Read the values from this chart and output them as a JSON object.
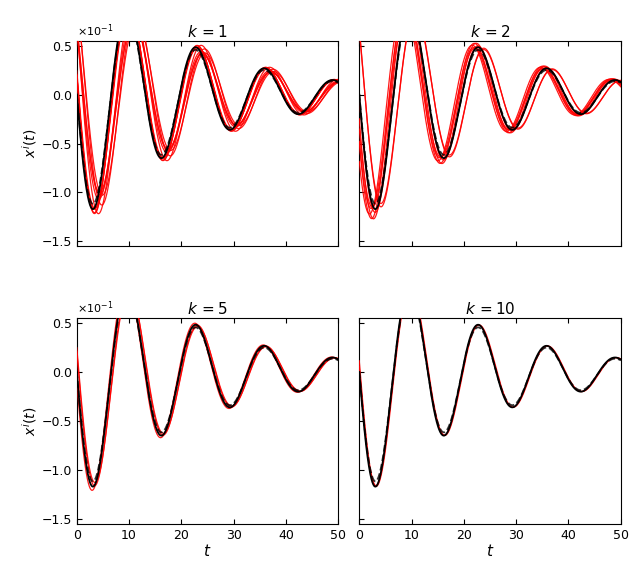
{
  "subplot_titles": [
    "k =1",
    "k =2",
    "k =5",
    "k =10"
  ],
  "t_start": 0,
  "t_end": 50,
  "n_points": 1000,
  "ylim": [
    -1.55,
    0.55
  ],
  "xlim": [
    0,
    50
  ],
  "yticks": [
    -1.5,
    -1.0,
    -0.5,
    0.0,
    0.5
  ],
  "xticks": [
    0,
    10,
    20,
    30,
    40,
    50
  ],
  "ylabel": "x^i(t)",
  "xlabel": "t",
  "ref_color": "#000000",
  "agent_color": "#FF0000",
  "n_agents": [
    10,
    8,
    3,
    2
  ],
  "phase_spreads": [
    1.8,
    1.2,
    0.5,
    0.25
  ],
  "amp_spreads": [
    0.12,
    0.08,
    0.03,
    0.015
  ],
  "ref_linewidth": 1.3,
  "agent_linewidth": 0.9,
  "figsize": [
    6.4,
    5.82
  ],
  "dpi": 100,
  "background": "#ffffff"
}
